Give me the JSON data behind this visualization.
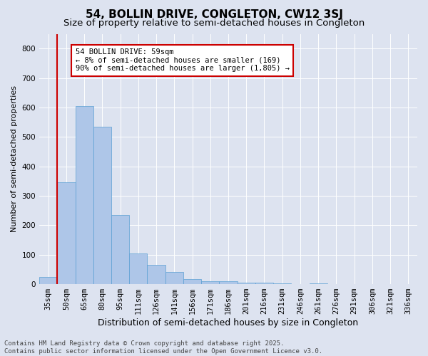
{
  "title": "54, BOLLIN DRIVE, CONGLETON, CW12 3SJ",
  "subtitle": "Size of property relative to semi-detached houses in Congleton",
  "xlabel": "Distribution of semi-detached houses by size in Congleton",
  "ylabel": "Number of semi-detached properties",
  "categories": [
    "35sqm",
    "50sqm",
    "65sqm",
    "80sqm",
    "95sqm",
    "111sqm",
    "126sqm",
    "141sqm",
    "156sqm",
    "171sqm",
    "186sqm",
    "201sqm",
    "216sqm",
    "231sqm",
    "246sqm",
    "261sqm",
    "276sqm",
    "291sqm",
    "306sqm",
    "321sqm",
    "336sqm"
  ],
  "values": [
    25,
    345,
    605,
    535,
    235,
    103,
    65,
    42,
    16,
    10,
    10,
    6,
    5,
    3,
    1,
    3,
    1,
    0,
    1,
    0,
    1
  ],
  "bar_color": "#aec6e8",
  "bar_edgecolor": "#5a9fd4",
  "vline_x_index": 1,
  "vline_color": "#cc0000",
  "annotation_text": "54 BOLLIN DRIVE: 59sqm\n← 8% of semi-detached houses are smaller (169)\n90% of semi-detached houses are larger (1,805) →",
  "annotation_box_facecolor": "#ffffff",
  "annotation_box_edgecolor": "#cc0000",
  "ylim": [
    0,
    850
  ],
  "yticks": [
    0,
    100,
    200,
    300,
    400,
    500,
    600,
    700,
    800
  ],
  "background_color": "#dde3f0",
  "grid_color": "#ffffff",
  "footer_text": "Contains HM Land Registry data © Crown copyright and database right 2025.\nContains public sector information licensed under the Open Government Licence v3.0.",
  "title_fontsize": 11,
  "subtitle_fontsize": 9.5,
  "xlabel_fontsize": 9,
  "ylabel_fontsize": 8,
  "tick_fontsize": 7.5,
  "annotation_fontsize": 7.5,
  "footer_fontsize": 6.5
}
